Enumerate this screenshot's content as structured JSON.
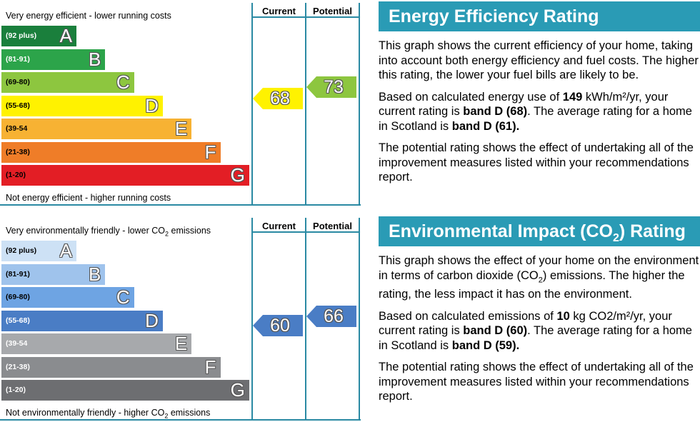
{
  "energy": {
    "top_label": "Very energy efficient - lower running costs",
    "bottom_label": "Not energy efficient - higher running costs",
    "col_current": "Current",
    "col_potential": "Potential",
    "bands": [
      {
        "range": "(92 plus)",
        "letter": "A",
        "color": "#1a7f3c"
      },
      {
        "range": "(81-91)",
        "letter": "B",
        "color": "#2ca44a"
      },
      {
        "range": "(69-80)",
        "letter": "C",
        "color": "#8dc63f"
      },
      {
        "range": "(55-68)",
        "letter": "D",
        "color": "#fff200"
      },
      {
        "range": "(39-54",
        "letter": "E",
        "color": "#f7b233"
      },
      {
        "range": "(21-38)",
        "letter": "F",
        "color": "#ef7d28"
      },
      {
        "range": "(1-20)",
        "letter": "G",
        "color": "#e31e25"
      }
    ],
    "current_value": "68",
    "current_color": "#fff200",
    "potential_value": "73",
    "potential_color": "#8dc63f"
  },
  "environment": {
    "top_label_pre": "Very environmentally friendly - lower CO",
    "top_label_sub": "2",
    "top_label_post": " emissions",
    "bottom_label_pre": "Not environmentally friendly - higher CO",
    "bottom_label_sub": "2",
    "bottom_label_post": " emissions",
    "col_current": "Current",
    "col_potential": "Potential",
    "bands": [
      {
        "range": "(92 plus)",
        "letter": "A",
        "color": "#cde1f5"
      },
      {
        "range": "(81-91)",
        "letter": "B",
        "color": "#9fc3ec"
      },
      {
        "range": "(69-80)",
        "letter": "C",
        "color": "#6ea4e3"
      },
      {
        "range": "(55-68)",
        "letter": "D",
        "color": "#4a7dc5"
      },
      {
        "range": "(39-54",
        "letter": "E",
        "color": "#a7a9ac"
      },
      {
        "range": "(21-38)",
        "letter": "F",
        "color": "#8a8c8f"
      },
      {
        "range": "(1-20)",
        "letter": "G",
        "color": "#6d6e71"
      }
    ],
    "current_value": "60",
    "current_color": "#4a7dc5",
    "potential_value": "66",
    "potential_color": "#4a7dc5"
  },
  "panel_energy": {
    "title": "Energy Efficiency Rating",
    "p1": "This graph shows the current efficiency of your home, taking into account both energy efficiency and fuel costs. The higher this rating, the lower your fuel bills are likely to be.",
    "p2_a": "Based on calculated energy use of ",
    "p2_b": "149",
    "p2_c": " kWh/m²/yr, your current rating is ",
    "p2_d": "band D (68)",
    "p2_e": ". The average rating for a home in Scotland is ",
    "p2_f": "band D (61).",
    "p3": "The potential rating shows the effect of undertaking all of the improvement measures listed within your recommendations report."
  },
  "panel_env": {
    "title_pre": "Environmental Impact (CO",
    "title_sub": "2",
    "title_post": ") Rating",
    "p1_pre": "This graph shows the effect of your home on the environment in terms of carbon dioxide (CO",
    "p1_sub": "2",
    "p1_post": ") emissions. The higher the rating, the less impact it has on the environment.",
    "p2_a": "Based on calculated emissions of ",
    "p2_b": "10",
    "p2_c": " kg CO2/m²/yr, your current rating is ",
    "p2_d": "band D (60)",
    "p2_e": ". The average rating for a home in Scotland is ",
    "p2_f": "band D (59).",
    "p3": "The potential rating shows the effect of undertaking all of the improvement measures listed within your recommendations report."
  }
}
